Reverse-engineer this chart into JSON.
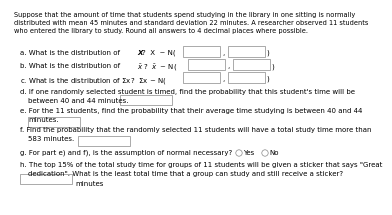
{
  "intro": "Suppose that the amount of time that students spend studying in the library in one sitting is normally\ndistributed with mean 45 minutes and standard deviation 22 minutes. A researcher observed 11 students\nwho entered the library to study. Round all answers to 4 decimal places where possible.",
  "bg_color": "#ffffff",
  "text_color": "#000000",
  "fs_intro": 4.8,
  "fs_body": 5.0
}
